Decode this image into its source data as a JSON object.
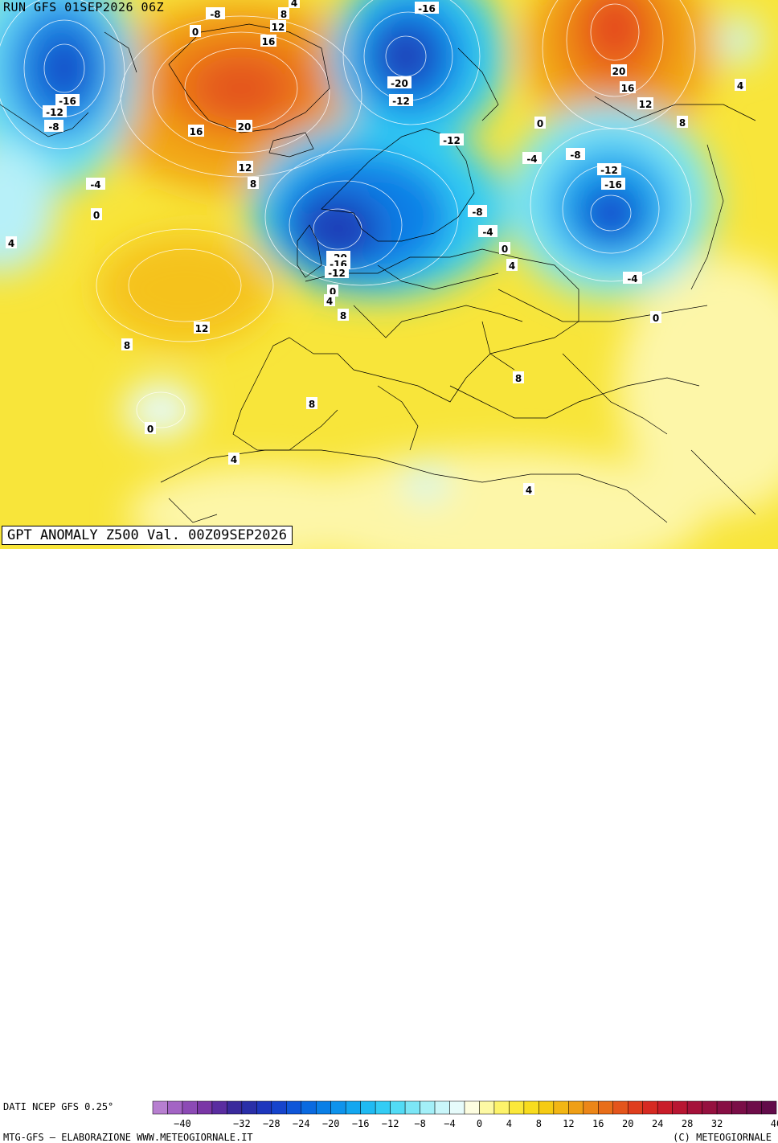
{
  "header": {
    "run_label": "RUN GFS 01SEP2026 06Z",
    "title": "GPT ANOMALY Z500 Val. 00Z09SEP2026"
  },
  "footer": {
    "source": "DATI NCEP GFS 0.25°",
    "credit_left": "MTG-GFS — ELABORAZIONE WWW.METEOGIORNALE.IT",
    "credit_right": "(C) METEOGIORNALE"
  },
  "colorbar": {
    "unit_label": "",
    "steps": [
      -42,
      -40,
      -38,
      -36,
      -34,
      -32,
      -30,
      -28,
      -26,
      -24,
      -22,
      -20,
      -18,
      -16,
      -14,
      -12,
      -10,
      -8,
      -6,
      -4,
      -2,
      0,
      2,
      4,
      6,
      8,
      10,
      12,
      14,
      16,
      18,
      20,
      22,
      24,
      26,
      28,
      30,
      32,
      34,
      36,
      38,
      40
    ],
    "tick_labels": [
      "-40",
      "-32",
      "-28",
      "-24",
      "-20",
      "-16",
      "-12",
      "-8",
      "-4",
      "0",
      "4",
      "8",
      "12",
      "16",
      "20",
      "24",
      "28",
      "32",
      "40"
    ],
    "colors": [
      "#b77fd0",
      "#a364c4",
      "#8c4ab5",
      "#7a37a6",
      "#5a2da0",
      "#3a2a9c",
      "#2a2fa8",
      "#1e37bd",
      "#1644cc",
      "#0f56d8",
      "#0a6ae0",
      "#0a7fe6",
      "#0e93ec",
      "#14a7f0",
      "#1fbaf2",
      "#33ccf4",
      "#52dbf5",
      "#7ce6f6",
      "#a3eff8",
      "#c9f6fa",
      "#e6fbfb",
      "#fdfde0",
      "#fdf9a4",
      "#fdf36a",
      "#fbe83a",
      "#f8dc1e",
      "#f5cb14",
      "#f2b614",
      "#ef9f16",
      "#ec8618",
      "#e86e1a",
      "#e4551c",
      "#df3e1e",
      "#d62a22",
      "#c91d2a",
      "#b81632",
      "#a5123a",
      "#95113f",
      "#870f44",
      "#7a0e47",
      "#6e0d49",
      "#620c4a"
    ]
  },
  "map": {
    "contour_labels": [
      {
        "text": "-8"
      },
      {
        "text": "0"
      },
      {
        "text": "4"
      },
      {
        "text": "8"
      },
      {
        "text": "12"
      },
      {
        "text": "16"
      },
      {
        "text": "-16"
      },
      {
        "text": "-12"
      },
      {
        "text": "-8"
      },
      {
        "text": "16"
      },
      {
        "text": "20"
      },
      {
        "text": "-20"
      },
      {
        "text": "-12"
      },
      {
        "text": "20"
      },
      {
        "text": "16"
      },
      {
        "text": "12"
      },
      {
        "text": "0"
      },
      {
        "text": "8"
      },
      {
        "text": "4"
      },
      {
        "text": "-4"
      },
      {
        "text": "-8"
      },
      {
        "text": "-12"
      },
      {
        "text": "-16"
      },
      {
        "text": "-12"
      },
      {
        "text": "12"
      },
      {
        "text": "8"
      },
      {
        "text": "-4"
      },
      {
        "text": "0"
      },
      {
        "text": "4"
      },
      {
        "text": "-8"
      },
      {
        "text": "-4"
      },
      {
        "text": "0"
      },
      {
        "text": "4"
      },
      {
        "text": "-20"
      },
      {
        "text": "-16"
      },
      {
        "text": "-12"
      },
      {
        "text": "0"
      },
      {
        "text": "4"
      },
      {
        "text": "8"
      },
      {
        "text": "-4"
      },
      {
        "text": "0"
      },
      {
        "text": "12"
      },
      {
        "text": "8"
      },
      {
        "text": "8"
      },
      {
        "text": "8"
      },
      {
        "text": "0"
      },
      {
        "text": "4"
      },
      {
        "text": "4"
      },
      {
        "text": "-4"
      }
    ]
  }
}
